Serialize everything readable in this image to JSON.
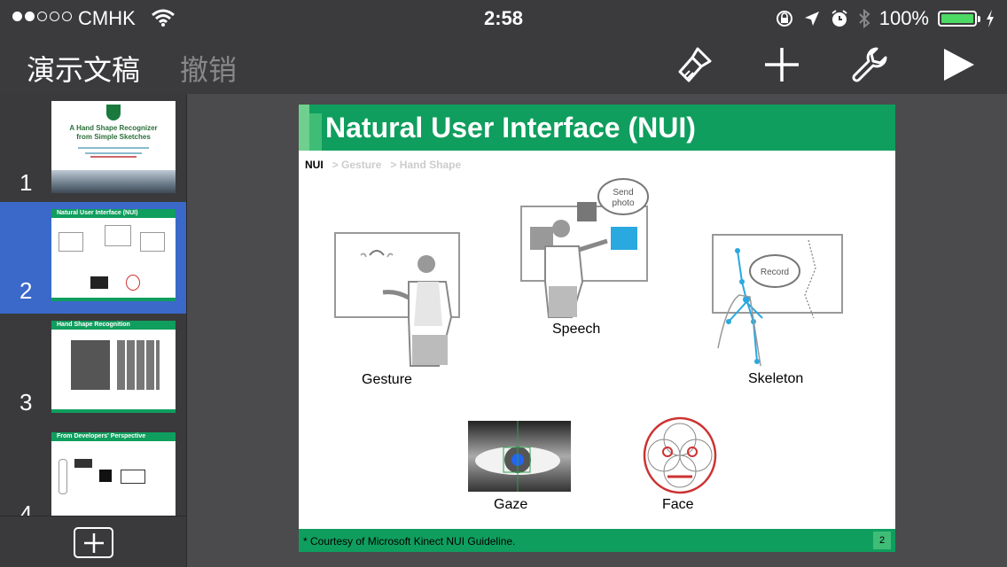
{
  "status_bar": {
    "carrier": "CMHK",
    "time": "2:58",
    "battery_percent": "100%",
    "battery_level": 1.0,
    "colors": {
      "battery": "#4cd964"
    }
  },
  "toolbar": {
    "title": "演示文稿",
    "undo_label": "撤销",
    "icons": [
      "brush-icon",
      "plus-icon",
      "wrench-icon",
      "play-icon"
    ]
  },
  "thumbnails": [
    {
      "number": "1",
      "title": "A Hand Shape Recognizer from Simple Sketches"
    },
    {
      "number": "2",
      "title": "Natural User Interface (NUI)"
    },
    {
      "number": "3",
      "title": "Hand Shape Recognition"
    },
    {
      "number": "4",
      "title": "From Developers' Perspective"
    }
  ],
  "slide": {
    "title": "Natural User Interface (NUI)",
    "breadcrumb": {
      "current": "NUI",
      "sep": ">",
      "b2": "Gesture",
      "b3": "Hand Shape"
    },
    "labels": {
      "gesture": "Gesture",
      "speech": "Speech",
      "skeleton": "Skeleton",
      "gaze": "Gaze",
      "face": "Face"
    },
    "bubbles": {
      "send_photo_1": "Send",
      "send_photo_2": "photo",
      "record": "Record"
    },
    "footnote": "* Courtesy of Microsoft Kinect NUI Guideline.",
    "page_number": "2",
    "colors": {
      "title_bar": "#0f9e5e",
      "accent": "#3fbd77"
    }
  }
}
